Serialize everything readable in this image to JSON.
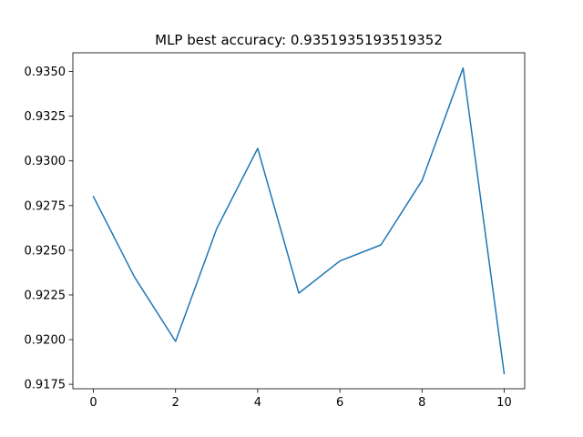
{
  "chart_data": {
    "type": "line",
    "title": "MLP best accuracy: 0.9351935193519352",
    "xlabel": "",
    "ylabel": "",
    "x": [
      0,
      1,
      2,
      3,
      4,
      5,
      6,
      7,
      8,
      9,
      10
    ],
    "series": [
      {
        "values": [
          0.928,
          0.9235,
          0.9199,
          0.9262,
          0.9307,
          0.9226,
          0.9244,
          0.9253,
          0.9289,
          0.9352,
          0.9181
        ]
      }
    ],
    "xlim": [
      -0.5,
      10.5
    ],
    "ylim": [
      0.91725,
      0.93605
    ],
    "xticks": [
      "0",
      "2",
      "4",
      "6",
      "8",
      "10"
    ],
    "xtick_values": [
      0,
      2,
      4,
      6,
      8,
      10
    ],
    "yticks": [
      "0.9175",
      "0.9200",
      "0.9225",
      "0.9250",
      "0.9275",
      "0.9300",
      "0.9325",
      "0.9350"
    ],
    "ytick_values": [
      0.9175,
      0.92,
      0.9225,
      0.925,
      0.9275,
      0.93,
      0.9325,
      0.935
    ],
    "grid": false,
    "legend": "none",
    "colors": {
      "line": "#1f77b4",
      "axes": "#000000",
      "background": "#ffffff"
    }
  }
}
